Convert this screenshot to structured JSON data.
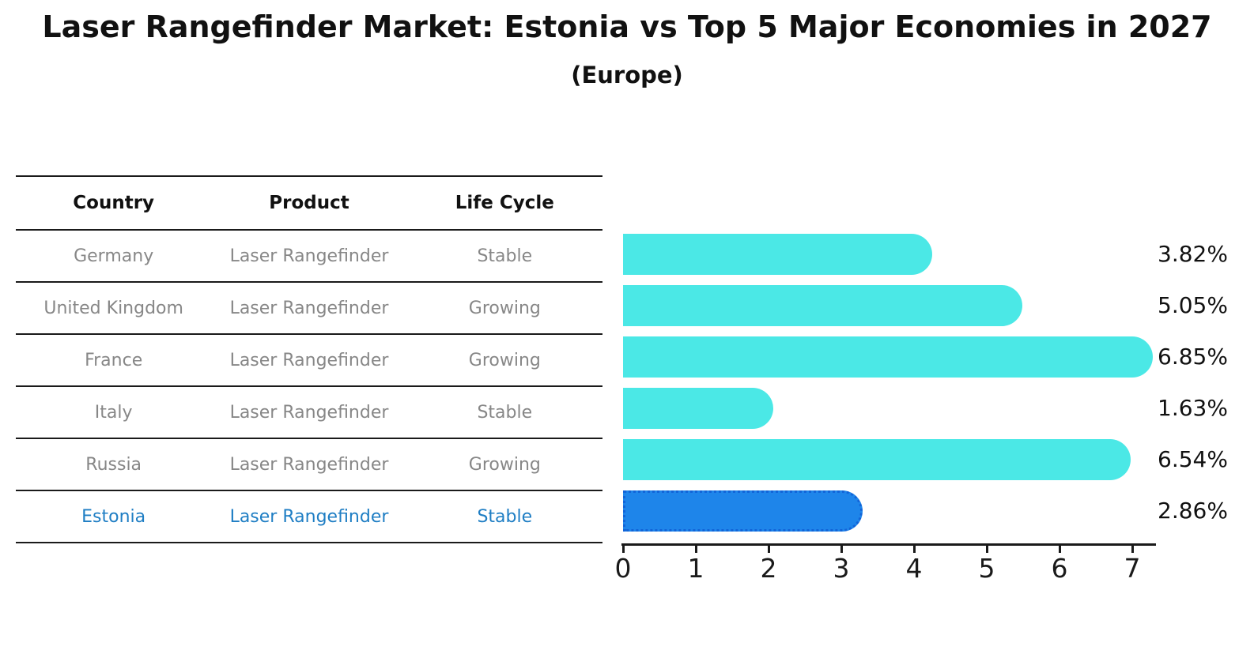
{
  "title": "Laser Rangefinder Market: Estonia vs Top 5 Major Economies in 2027",
  "subtitle": "(Europe)",
  "table": {
    "headers": [
      "Country",
      "Product",
      "Life Cycle"
    ],
    "rows": [
      {
        "country": "Germany",
        "product": "Laser Rangefinder",
        "life_cycle": "Stable",
        "highlight": false
      },
      {
        "country": "United Kingdom",
        "product": "Laser Rangefinder",
        "life_cycle": "Growing",
        "highlight": false
      },
      {
        "country": "France",
        "product": "Laser Rangefinder",
        "life_cycle": "Growing",
        "highlight": false
      },
      {
        "country": "Italy",
        "product": "Laser Rangefinder",
        "life_cycle": "Stable",
        "highlight": false
      },
      {
        "country": "Russia",
        "product": "Laser Rangefinder",
        "life_cycle": "Growing",
        "highlight": false
      },
      {
        "country": "Estonia",
        "product": "Laser Rangefinder",
        "life_cycle": "Stable",
        "highlight": true
      }
    ]
  },
  "chart_data": {
    "type": "bar",
    "orientation": "horizontal",
    "title": "Laser Rangefinder Market: Estonia vs Top 5 Major Economies in 2027 (Europe)",
    "categories": [
      "Germany",
      "United Kingdom",
      "France",
      "Italy",
      "Russia",
      "Estonia"
    ],
    "values": [
      3.82,
      5.05,
      6.85,
      1.63,
      6.54,
      2.86
    ],
    "value_labels": [
      "3.82%",
      "5.05%",
      "6.85%",
      "1.63%",
      "6.54%",
      "2.86%"
    ],
    "unit": "percent",
    "xlabel": "",
    "ylabel": "",
    "xlim": [
      0,
      7
    ],
    "x_ticks": [
      0,
      1,
      2,
      3,
      4,
      5,
      6,
      7
    ],
    "grid": false,
    "legend": false,
    "bar_color": "#4BE8E6",
    "highlight_index": 5,
    "highlight_color": "#1E85EA",
    "highlight_border_color": "#1264D8"
  },
  "colors": {
    "background": "#ffffff",
    "text_primary": "#111111",
    "text_muted": "#878787",
    "highlight_text": "#1f7ec4",
    "axis": "#1a1a1a"
  }
}
